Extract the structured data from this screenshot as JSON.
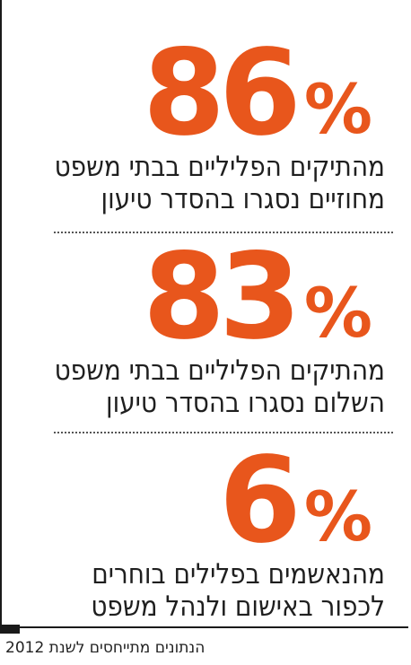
{
  "colors": {
    "accent": "#e8561c",
    "text": "#1f1f1f"
  },
  "stats": [
    {
      "number": "86",
      "percent_sign": "%",
      "line1": "מהתיקים הפליליים בבתי משפט",
      "line2": "מחוזיים נסגרו בהסדר טיעון"
    },
    {
      "number": "83",
      "percent_sign": "%",
      "line1": "מהתיקים הפליליים בבתי משפט",
      "line2": "השלום נסגרו בהסדר טיעון"
    },
    {
      "number": "6",
      "percent_sign": "%",
      "line1": "מהנאשמים בפלילים בוחרים",
      "line2": "לכפור באישום ולנהל משפט"
    }
  ],
  "footer": {
    "text": "הנתונים מתייחסים לשנת 2012"
  }
}
